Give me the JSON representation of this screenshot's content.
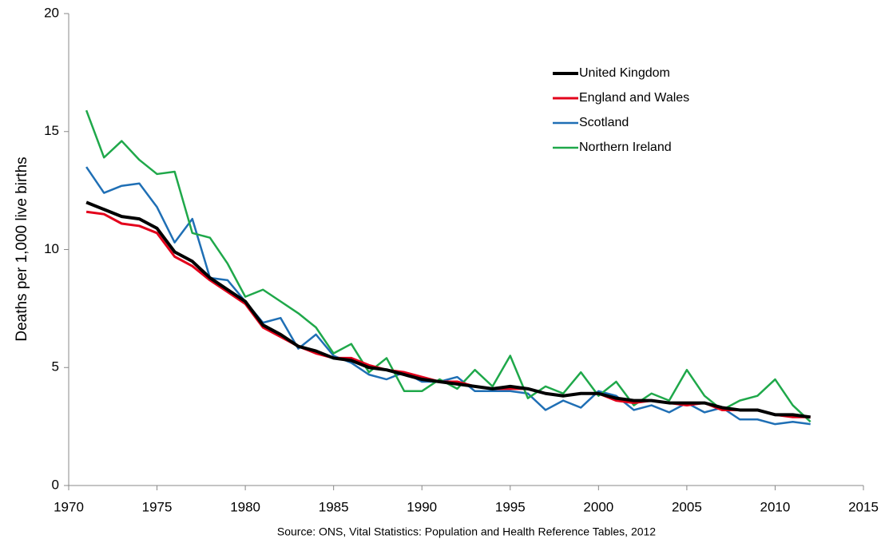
{
  "chart_data": {
    "type": "line",
    "y_label": "Deaths per 1,000 live births",
    "source": "Source: ONS, Vital Statistics: Population and Health Reference Tables, 2012",
    "x": [
      1971,
      1972,
      1973,
      1974,
      1975,
      1976,
      1977,
      1978,
      1979,
      1980,
      1981,
      1982,
      1983,
      1984,
      1985,
      1986,
      1987,
      1988,
      1989,
      1990,
      1991,
      1992,
      1993,
      1994,
      1995,
      1996,
      1997,
      1998,
      1999,
      2000,
      2001,
      2002,
      2003,
      2004,
      2005,
      2006,
      2007,
      2008,
      2009,
      2010,
      2011,
      2012
    ],
    "series": [
      {
        "name": "United Kingdom",
        "color": "#000000",
        "width": 4,
        "values": [
          12.0,
          11.7,
          11.4,
          11.3,
          10.9,
          9.9,
          9.5,
          8.8,
          8.3,
          7.8,
          6.8,
          6.4,
          5.9,
          5.7,
          5.4,
          5.3,
          5.0,
          4.9,
          4.7,
          4.5,
          4.4,
          4.3,
          4.2,
          4.1,
          4.2,
          4.1,
          3.9,
          3.8,
          3.9,
          3.9,
          3.7,
          3.6,
          3.6,
          3.5,
          3.5,
          3.5,
          3.3,
          3.2,
          3.2,
          3.0,
          3.0,
          2.9
        ]
      },
      {
        "name": "England and Wales",
        "color": "#e3001b",
        "width": 3,
        "values": [
          11.6,
          11.5,
          11.1,
          11.0,
          10.7,
          9.7,
          9.3,
          8.7,
          8.2,
          7.7,
          6.7,
          6.3,
          5.9,
          5.6,
          5.4,
          5.4,
          5.1,
          4.9,
          4.8,
          4.6,
          4.4,
          4.4,
          4.2,
          4.1,
          4.1,
          4.1,
          3.9,
          3.8,
          3.9,
          3.9,
          3.6,
          3.5,
          3.6,
          3.5,
          3.4,
          3.5,
          3.2,
          3.2,
          3.2,
          3.0,
          2.9,
          2.9
        ]
      },
      {
        "name": "Scotland",
        "color": "#1f6fb5",
        "width": 2.5,
        "values": [
          13.5,
          12.4,
          12.7,
          12.8,
          11.8,
          10.3,
          11.3,
          8.8,
          8.7,
          7.8,
          6.9,
          7.1,
          5.8,
          6.4,
          5.5,
          5.2,
          4.7,
          4.5,
          4.8,
          4.4,
          4.4,
          4.6,
          4.0,
          4.0,
          4.0,
          3.9,
          3.2,
          3.6,
          3.3,
          4.0,
          3.8,
          3.2,
          3.4,
          3.1,
          3.5,
          3.1,
          3.3,
          2.8,
          2.8,
          2.6,
          2.7,
          2.6
        ]
      },
      {
        "name": "Northern Ireland",
        "color": "#1fa84a",
        "width": 2.5,
        "values": [
          15.9,
          13.9,
          14.6,
          13.8,
          13.2,
          13.3,
          10.7,
          10.5,
          9.4,
          8.0,
          8.3,
          7.8,
          7.3,
          6.7,
          5.6,
          6.0,
          4.8,
          5.4,
          4.0,
          4.0,
          4.5,
          4.1,
          4.9,
          4.2,
          5.5,
          3.7,
          4.2,
          3.9,
          4.8,
          3.8,
          4.4,
          3.4,
          3.9,
          3.6,
          4.9,
          3.8,
          3.2,
          3.6,
          3.8,
          4.5,
          3.4,
          2.7
        ]
      }
    ],
    "xlim": [
      1970,
      2015
    ],
    "xticks": [
      1970,
      1975,
      1980,
      1985,
      1990,
      1995,
      2000,
      2005,
      2010,
      2015
    ],
    "ylim": [
      0,
      20
    ],
    "yticks": [
      0,
      5,
      10,
      15,
      20
    ],
    "grid": false,
    "legend": "upper right"
  }
}
